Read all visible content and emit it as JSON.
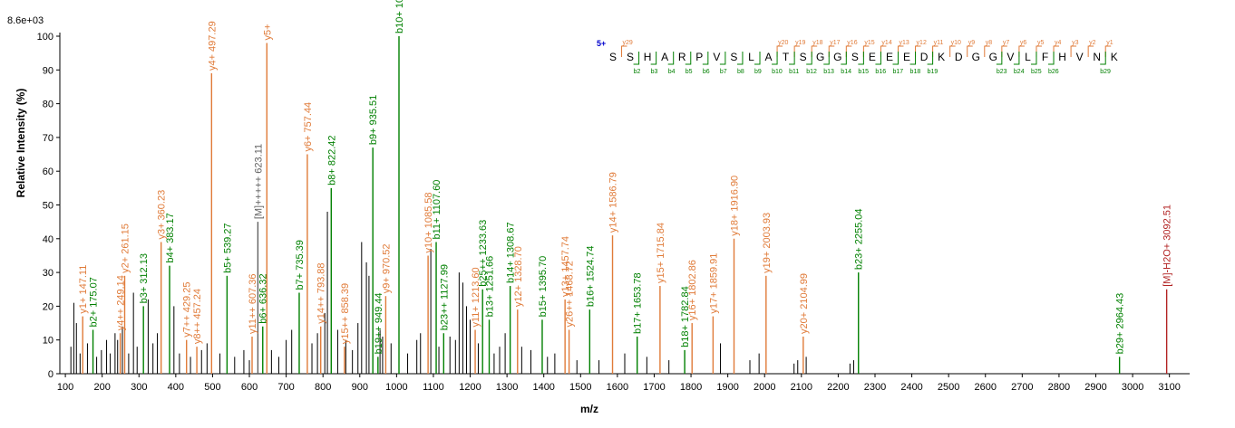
{
  "chart_data": {
    "type": "bar",
    "max_intensity_label": "8.6e+03",
    "xlabel": "m/z",
    "ylabel": "Relative   Intensity (%)",
    "xlim": [
      85,
      3155
    ],
    "ylim": [
      0,
      100
    ],
    "x_ticks": [
      100,
      200,
      300,
      400,
      500,
      600,
      700,
      800,
      900,
      1000,
      1100,
      1200,
      1300,
      1400,
      1500,
      1600,
      1700,
      1800,
      1900,
      2000,
      2100,
      2200,
      2300,
      2400,
      2500,
      2600,
      2700,
      2800,
      2900,
      3000,
      3100
    ],
    "y_ticks": [
      0,
      10,
      20,
      30,
      40,
      50,
      60,
      70,
      80,
      90,
      100
    ],
    "colors": {
      "y_ion": "#e07b39",
      "b_ion": "#008000",
      "precursor": "#606060",
      "neutral_loss": "#b22222",
      "noise": "#000000",
      "charge": "#0000cc"
    },
    "annotated_peaks": [
      {
        "mz": 147.11,
        "intensity": 17,
        "label": "y1+ 147.11",
        "ion": "y"
      },
      {
        "mz": 175.07,
        "intensity": 13,
        "label": "b2+ 175.07",
        "ion": "b"
      },
      {
        "mz": 249.14,
        "intensity": 12,
        "label": "y4++ 249.14",
        "ion": "y"
      },
      {
        "mz": 261.15,
        "intensity": 29,
        "label": "y2+ 261.15",
        "ion": "y"
      },
      {
        "mz": 312.13,
        "intensity": 20,
        "label": "b3+ 312.13",
        "ion": "b"
      },
      {
        "mz": 360.23,
        "intensity": 39,
        "label": "y3+ 360.23",
        "ion": "y"
      },
      {
        "mz": 383.17,
        "intensity": 32,
        "label": "b4+ 383.17",
        "ion": "b"
      },
      {
        "mz": 429.25,
        "intensity": 10,
        "label": "y7++ 429.25",
        "ion": "y"
      },
      {
        "mz": 457.24,
        "intensity": 8,
        "label": "y8++ 457.24",
        "ion": "y"
      },
      {
        "mz": 497.29,
        "intensity": 89,
        "label": "y4+ 497.29",
        "ion": "y"
      },
      {
        "mz": 539.27,
        "intensity": 29,
        "label": "b5+ 539.27",
        "ion": "b"
      },
      {
        "mz": 607.36,
        "intensity": 11,
        "label": "y11++ 607.36",
        "ion": "y"
      },
      {
        "mz": 623.11,
        "intensity": 45,
        "label": "[M]+++++ 623.11",
        "ion": "precursor"
      },
      {
        "mz": 636.32,
        "intensity": 14,
        "label": "b6+ 636.32",
        "ion": "b"
      },
      {
        "mz": 647.5,
        "intensity": 98,
        "label": "y5+",
        "ion": "y"
      },
      {
        "mz": 735.39,
        "intensity": 24,
        "label": "b7+ 735.39",
        "ion": "b"
      },
      {
        "mz": 757.44,
        "intensity": 65,
        "label": "y6+ 757.44",
        "ion": "y"
      },
      {
        "mz": 793.88,
        "intensity": 14,
        "label": "y14++ 793.88",
        "ion": "y"
      },
      {
        "mz": 822.42,
        "intensity": 55,
        "label": "b8+ 822.42",
        "ion": "b"
      },
      {
        "mz": 858.39,
        "intensity": 8,
        "label": "y15++ 858.39",
        "ion": "y"
      },
      {
        "mz": 935.51,
        "intensity": 67,
        "label": "b9+ 935.51",
        "ion": "b"
      },
      {
        "mz": 949.44,
        "intensity": 5,
        "label": "b19++ 949.44",
        "ion": "b"
      },
      {
        "mz": 970.52,
        "intensity": 23,
        "label": "y9+ 970.52",
        "ion": "y"
      },
      {
        "mz": 1006.5,
        "intensity": 100,
        "label": "b10+ 1006.5",
        "ion": "b"
      },
      {
        "mz": 1085.58,
        "intensity": 35,
        "label": "y10+ 1085.58",
        "ion": "y"
      },
      {
        "mz": 1107.6,
        "intensity": 39,
        "label": "b11+ 1107.60",
        "ion": "b"
      },
      {
        "mz": 1127.99,
        "intensity": 12,
        "label": "b23++ 1127.99",
        "ion": "b"
      },
      {
        "mz": 1213.6,
        "intensity": 13,
        "label": "y11+ 1213.60",
        "ion": "y"
      },
      {
        "mz": 1233.63,
        "intensity": 25,
        "label": "b25++ 1233.63",
        "ion": "b"
      },
      {
        "mz": 1251.66,
        "intensity": 16,
        "label": "b13+ 1251.66",
        "ion": "b"
      },
      {
        "mz": 1308.67,
        "intensity": 26,
        "label": "b14+ 1308.67",
        "ion": "b"
      },
      {
        "mz": 1328.7,
        "intensity": 19,
        "label": "y12+ 1328.70",
        "ion": "y"
      },
      {
        "mz": 1395.7,
        "intensity": 16,
        "label": "b15+ 1395.70",
        "ion": "b"
      },
      {
        "mz": 1457.74,
        "intensity": 22,
        "label": "y13+ 1457.74",
        "ion": "y"
      },
      {
        "mz": 1468.72,
        "intensity": 13,
        "label": "y26++ 1468.72",
        "ion": "y"
      },
      {
        "mz": 1524.74,
        "intensity": 19,
        "label": "b16+ 1524.74",
        "ion": "b"
      },
      {
        "mz": 1586.79,
        "intensity": 41,
        "label": "y14+ 1586.79",
        "ion": "y"
      },
      {
        "mz": 1653.78,
        "intensity": 11,
        "label": "b17+ 1653.78",
        "ion": "b"
      },
      {
        "mz": 1715.84,
        "intensity": 26,
        "label": "y15+ 1715.84",
        "ion": "y"
      },
      {
        "mz": 1782.84,
        "intensity": 7,
        "label": "b18+ 1782.84",
        "ion": "b"
      },
      {
        "mz": 1802.86,
        "intensity": 15,
        "label": "y16+ 1802.86",
        "ion": "y"
      },
      {
        "mz": 1859.91,
        "intensity": 17,
        "label": "y17+ 1859.91",
        "ion": "y"
      },
      {
        "mz": 1916.9,
        "intensity": 40,
        "label": "y18+ 1916.90",
        "ion": "y"
      },
      {
        "mz": 2003.93,
        "intensity": 29,
        "label": "y19+ 2003.93",
        "ion": "y"
      },
      {
        "mz": 2104.99,
        "intensity": 11,
        "label": "y20+ 2104.99",
        "ion": "y"
      },
      {
        "mz": 2255.04,
        "intensity": 30,
        "label": "b23+ 2255.04",
        "ion": "b"
      },
      {
        "mz": 2964.43,
        "intensity": 5,
        "label": "b29+ 2964.43",
        "ion": "b"
      },
      {
        "mz": 3092.51,
        "intensity": 25,
        "label": "[M]-H2O+ 3092.51",
        "ion": "neutral_loss"
      }
    ],
    "noise_peaks": [
      {
        "mz": 115,
        "intensity": 8
      },
      {
        "mz": 123,
        "intensity": 21
      },
      {
        "mz": 130,
        "intensity": 15
      },
      {
        "mz": 140,
        "intensity": 6
      },
      {
        "mz": 160,
        "intensity": 9
      },
      {
        "mz": 185,
        "intensity": 5
      },
      {
        "mz": 198,
        "intensity": 7
      },
      {
        "mz": 212,
        "intensity": 10
      },
      {
        "mz": 222,
        "intensity": 6
      },
      {
        "mz": 235,
        "intensity": 12
      },
      {
        "mz": 242,
        "intensity": 10
      },
      {
        "mz": 255,
        "intensity": 14
      },
      {
        "mz": 272,
        "intensity": 6
      },
      {
        "mz": 285,
        "intensity": 24
      },
      {
        "mz": 295,
        "intensity": 8
      },
      {
        "mz": 325,
        "intensity": 22
      },
      {
        "mz": 338,
        "intensity": 9
      },
      {
        "mz": 350,
        "intensity": 12
      },
      {
        "mz": 395,
        "intensity": 20
      },
      {
        "mz": 410,
        "intensity": 6
      },
      {
        "mz": 440,
        "intensity": 5
      },
      {
        "mz": 470,
        "intensity": 7
      },
      {
        "mz": 485,
        "intensity": 9
      },
      {
        "mz": 520,
        "intensity": 6
      },
      {
        "mz": 560,
        "intensity": 5
      },
      {
        "mz": 585,
        "intensity": 7
      },
      {
        "mz": 600,
        "intensity": 4
      },
      {
        "mz": 660,
        "intensity": 7
      },
      {
        "mz": 680,
        "intensity": 5
      },
      {
        "mz": 700,
        "intensity": 10
      },
      {
        "mz": 715,
        "intensity": 13
      },
      {
        "mz": 770,
        "intensity": 9
      },
      {
        "mz": 785,
        "intensity": 12
      },
      {
        "mz": 805,
        "intensity": 18
      },
      {
        "mz": 812,
        "intensity": 48
      },
      {
        "mz": 840,
        "intensity": 13
      },
      {
        "mz": 862,
        "intensity": 10
      },
      {
        "mz": 880,
        "intensity": 7
      },
      {
        "mz": 895,
        "intensity": 15
      },
      {
        "mz": 905,
        "intensity": 39
      },
      {
        "mz": 918,
        "intensity": 33
      },
      {
        "mz": 925,
        "intensity": 29
      },
      {
        "mz": 955,
        "intensity": 13
      },
      {
        "mz": 962,
        "intensity": 11
      },
      {
        "mz": 985,
        "intensity": 9
      },
      {
        "mz": 1030,
        "intensity": 6
      },
      {
        "mz": 1055,
        "intensity": 10
      },
      {
        "mz": 1065,
        "intensity": 12
      },
      {
        "mz": 1093,
        "intensity": 37
      },
      {
        "mz": 1115,
        "intensity": 8
      },
      {
        "mz": 1145,
        "intensity": 11
      },
      {
        "mz": 1160,
        "intensity": 10
      },
      {
        "mz": 1170,
        "intensity": 30
      },
      {
        "mz": 1180,
        "intensity": 27
      },
      {
        "mz": 1190,
        "intensity": 20
      },
      {
        "mz": 1200,
        "intensity": 16
      },
      {
        "mz": 1222,
        "intensity": 9
      },
      {
        "mz": 1265,
        "intensity": 6
      },
      {
        "mz": 1280,
        "intensity": 8
      },
      {
        "mz": 1295,
        "intensity": 12
      },
      {
        "mz": 1340,
        "intensity": 8
      },
      {
        "mz": 1365,
        "intensity": 7
      },
      {
        "mz": 1410,
        "intensity": 5
      },
      {
        "mz": 1430,
        "intensity": 6
      },
      {
        "mz": 1490,
        "intensity": 4
      },
      {
        "mz": 1550,
        "intensity": 4
      },
      {
        "mz": 1620,
        "intensity": 6
      },
      {
        "mz": 1680,
        "intensity": 5
      },
      {
        "mz": 1740,
        "intensity": 4
      },
      {
        "mz": 1880,
        "intensity": 9
      },
      {
        "mz": 1960,
        "intensity": 4
      },
      {
        "mz": 1985,
        "intensity": 6
      },
      {
        "mz": 2080,
        "intensity": 3
      },
      {
        "mz": 2090,
        "intensity": 4
      },
      {
        "mz": 2113,
        "intensity": 5
      },
      {
        "mz": 2232,
        "intensity": 3
      },
      {
        "mz": 2242,
        "intensity": 4
      }
    ]
  },
  "sequence": {
    "charge_label": "5+",
    "residues": [
      "S",
      "S",
      "H",
      "A",
      "R",
      "P",
      "V",
      "S",
      "L",
      "A",
      "T",
      "S",
      "G",
      "G",
      "S",
      "E",
      "E",
      "E",
      "D",
      "K",
      "D",
      "G",
      "G",
      "V",
      "L",
      "F",
      "H",
      "V",
      "N",
      "K"
    ],
    "y_ions": [
      {
        "after": 1,
        "label": "y29"
      },
      {
        "after": 10,
        "label": "y20"
      },
      {
        "after": 11,
        "label": "y19"
      },
      {
        "after": 12,
        "label": "y18"
      },
      {
        "after": 13,
        "label": "y17"
      },
      {
        "after": 14,
        "label": "y16"
      },
      {
        "after": 15,
        "label": "y15"
      },
      {
        "after": 16,
        "label": "y14"
      },
      {
        "after": 17,
        "label": "y13"
      },
      {
        "after": 18,
        "label": "y12"
      },
      {
        "after": 19,
        "label": "y11"
      },
      {
        "after": 20,
        "label": "y10"
      },
      {
        "after": 21,
        "label": "y9"
      },
      {
        "after": 22,
        "label": "y8"
      },
      {
        "after": 23,
        "label": "y7"
      },
      {
        "after": 24,
        "label": "y6"
      },
      {
        "after": 25,
        "label": "y5"
      },
      {
        "after": 26,
        "label": "y4"
      },
      {
        "after": 27,
        "label": "y3"
      },
      {
        "after": 28,
        "label": "y2"
      },
      {
        "after": 29,
        "label": "y1"
      }
    ],
    "b_ions": [
      {
        "after": 2,
        "label": "b2"
      },
      {
        "after": 3,
        "label": "b3"
      },
      {
        "after": 4,
        "label": "b4"
      },
      {
        "after": 5,
        "label": "b5"
      },
      {
        "after": 6,
        "label": "b6"
      },
      {
        "after": 7,
        "label": "b7"
      },
      {
        "after": 8,
        "label": "b8"
      },
      {
        "after": 9,
        "label": "b9"
      },
      {
        "after": 10,
        "label": "b10"
      },
      {
        "after": 11,
        "label": "b11"
      },
      {
        "after": 12,
        "label": "b12"
      },
      {
        "after": 13,
        "label": "b13"
      },
      {
        "after": 14,
        "label": "b14"
      },
      {
        "after": 15,
        "label": "b15"
      },
      {
        "after": 16,
        "label": "b16"
      },
      {
        "after": 17,
        "label": "b17"
      },
      {
        "after": 18,
        "label": "b18"
      },
      {
        "after": 19,
        "label": "b19"
      },
      {
        "after": 23,
        "label": "b23"
      },
      {
        "after": 24,
        "label": "b24"
      },
      {
        "after": 25,
        "label": "b25"
      },
      {
        "after": 26,
        "label": "b26"
      },
      {
        "after": 29,
        "label": "b29"
      }
    ]
  }
}
